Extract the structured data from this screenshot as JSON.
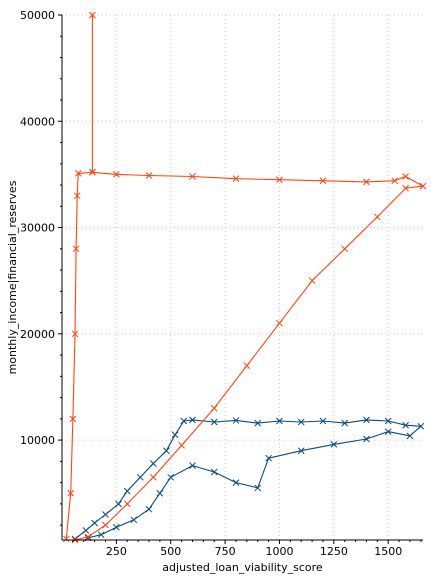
{
  "chart_data": {
    "type": "line",
    "title": "",
    "xlabel": "adjusted_loan_viability_score",
    "ylabel": "monthly_income|financial_reserves",
    "xlim": [
      0,
      1660
    ],
    "ylim": [
      600,
      50000
    ],
    "x_ticks": [
      250,
      500,
      750,
      1000,
      1250,
      1500
    ],
    "y_ticks": [
      10000,
      20000,
      30000,
      40000,
      50000
    ],
    "grid": true,
    "legend": "none",
    "marker": "x",
    "series": [
      {
        "color": "#0a4a83",
        "points": [
          [
            60,
            700
          ],
          [
            110,
            1500
          ],
          [
            150,
            2200
          ],
          [
            200,
            3000
          ],
          [
            260,
            4000
          ],
          [
            300,
            5200
          ],
          [
            360,
            6500
          ],
          [
            420,
            7800
          ],
          [
            480,
            9000
          ],
          [
            520,
            10500
          ],
          [
            560,
            11800
          ],
          [
            600,
            11900
          ],
          [
            700,
            11700
          ],
          [
            800,
            11850
          ],
          [
            900,
            11600
          ],
          [
            1000,
            11800
          ],
          [
            1100,
            11700
          ],
          [
            1200,
            11800
          ],
          [
            1300,
            11600
          ],
          [
            1400,
            11900
          ],
          [
            1500,
            11800
          ],
          [
            1580,
            11400
          ],
          [
            1650,
            11300
          ],
          [
            1600,
            10400
          ],
          [
            1500,
            10800
          ],
          [
            1400,
            10100
          ],
          [
            1250,
            9600
          ],
          [
            1100,
            9000
          ],
          [
            950,
            8300
          ],
          [
            900,
            5500
          ],
          [
            800,
            6000
          ],
          [
            700,
            7000
          ],
          [
            600,
            7600
          ],
          [
            500,
            6500
          ],
          [
            450,
            5000
          ],
          [
            400,
            3500
          ],
          [
            330,
            2500
          ],
          [
            250,
            1800
          ],
          [
            180,
            1100
          ],
          [
            120,
            800
          ]
        ]
      },
      {
        "color": "#ff4411",
        "points": [
          [
            20,
            700
          ],
          [
            40,
            5000
          ],
          [
            50,
            12000
          ],
          [
            60,
            20000
          ],
          [
            65,
            28000
          ],
          [
            70,
            33000
          ],
          [
            75,
            35100
          ],
          [
            140,
            35200
          ],
          [
            140,
            50000
          ],
          [
            140,
            35200
          ],
          [
            250,
            35000
          ],
          [
            400,
            34900
          ],
          [
            600,
            34800
          ],
          [
            800,
            34600
          ],
          [
            1000,
            34500
          ],
          [
            1200,
            34400
          ],
          [
            1400,
            34300
          ],
          [
            1530,
            34400
          ],
          [
            1580,
            34800
          ],
          [
            1660,
            33900
          ],
          [
            1580,
            33700
          ],
          [
            1450,
            31000
          ],
          [
            1300,
            28000
          ],
          [
            1150,
            25000
          ],
          [
            1000,
            21000
          ],
          [
            850,
            17000
          ],
          [
            700,
            13000
          ],
          [
            550,
            9500
          ],
          [
            420,
            6500
          ],
          [
            300,
            4000
          ],
          [
            200,
            2000
          ],
          [
            120,
            900
          ],
          [
            60,
            600
          ]
        ]
      }
    ]
  }
}
